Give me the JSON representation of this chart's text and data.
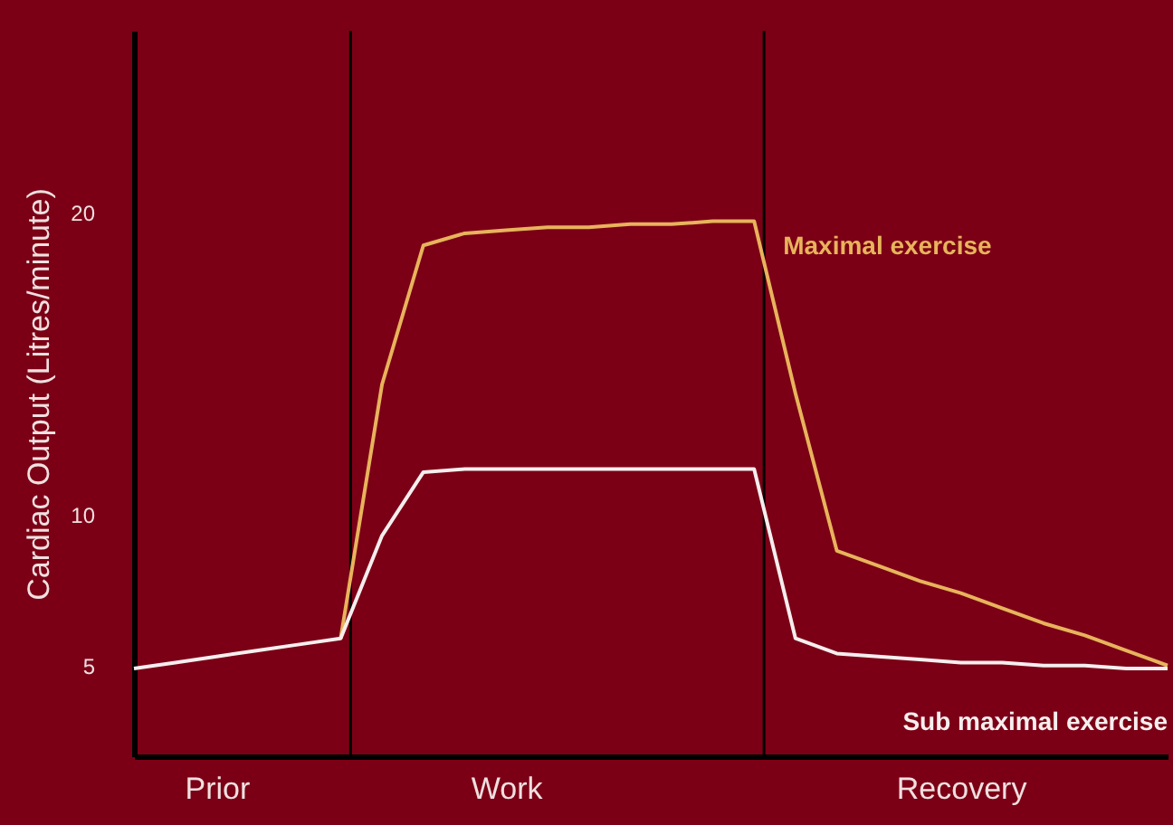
{
  "chart_data": {
    "type": "line",
    "ylabel": "Cardiac Output (Litres/minute)",
    "ylim": [
      2,
      26
    ],
    "yticks": [
      5,
      10,
      20
    ],
    "categories": [
      null,
      null,
      "Prior",
      null,
      null,
      null,
      null,
      null,
      null,
      "Work",
      null,
      null,
      null,
      null,
      null,
      null,
      null,
      null,
      null,
      null,
      "Recovery",
      null,
      null,
      null,
      null,
      null
    ],
    "series": [
      {
        "name": "Maximal exercise",
        "color": "#e8b35c",
        "values": [
          null,
          null,
          null,
          null,
          null,
          5.9,
          14.3,
          18.9,
          19.3,
          19.4,
          19.5,
          19.5,
          19.6,
          19.6,
          19.7,
          19.7,
          14.0,
          8.8,
          8.3,
          7.8,
          7.4,
          6.9,
          6.4,
          6.0,
          5.5,
          5.0
        ]
      },
      {
        "name": "Sub maximal exercise",
        "color": "#f6eeee",
        "values": [
          4.9,
          5.1,
          5.3,
          5.5,
          5.7,
          5.9,
          9.3,
          11.4,
          11.5,
          11.5,
          11.5,
          11.5,
          11.5,
          11.5,
          11.5,
          11.5,
          5.9,
          5.4,
          5.3,
          5.2,
          5.1,
          5.1,
          5.0,
          5.0,
          4.9,
          4.9
        ]
      }
    ]
  }
}
